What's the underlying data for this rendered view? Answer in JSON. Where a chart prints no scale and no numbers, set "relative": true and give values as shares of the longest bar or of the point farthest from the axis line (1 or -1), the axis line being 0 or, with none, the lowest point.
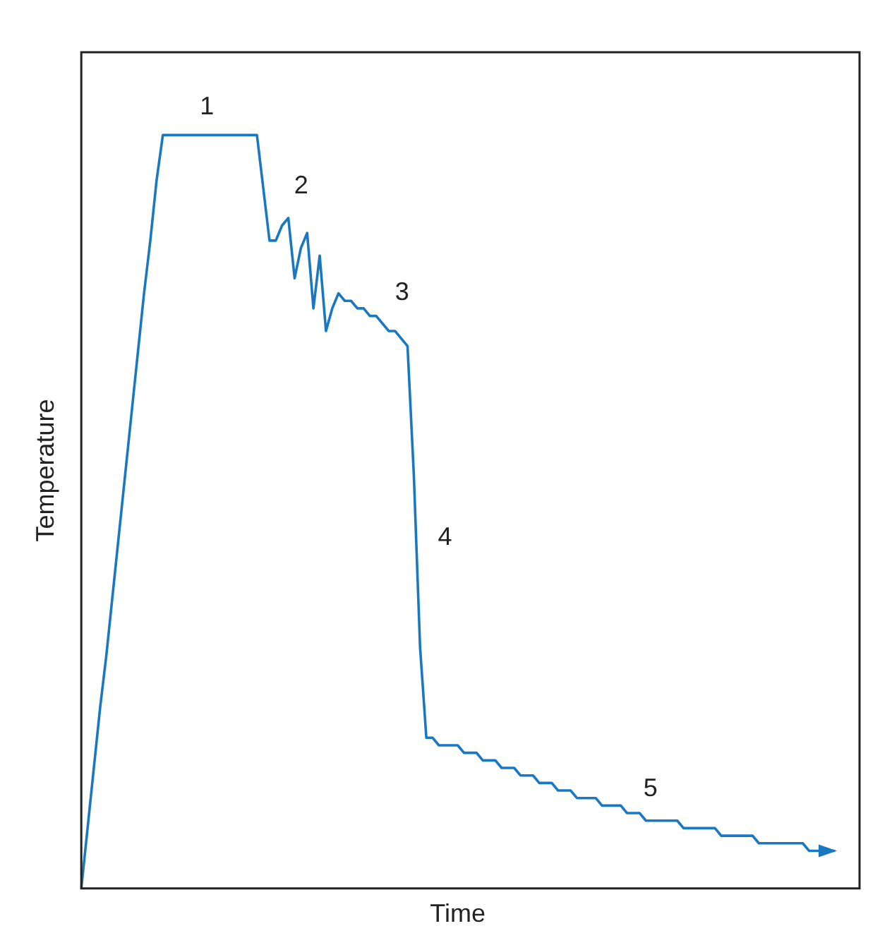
{
  "chart_data": {
    "type": "line",
    "xlabel": "Time",
    "ylabel": "Temperature",
    "relative": true,
    "tick_labels": false,
    "legend": false,
    "marker": "none",
    "line_style": "solid",
    "categories": [
      null,
      null,
      null,
      null,
      null,
      null,
      null,
      null,
      null,
      null,
      null,
      null,
      null,
      null,
      null,
      null,
      null,
      null,
      null,
      null,
      null,
      null,
      null,
      null,
      null,
      null,
      null,
      null,
      null,
      null,
      null,
      null,
      null,
      null,
      null,
      null,
      null,
      null,
      null,
      null,
      null,
      null,
      null,
      null,
      null,
      null,
      null,
      null,
      null,
      null,
      null,
      null,
      null,
      null,
      null,
      null,
      null,
      null,
      null,
      null,
      null,
      null,
      null,
      null,
      null,
      null,
      null,
      null,
      null,
      null,
      null,
      null,
      null,
      null,
      null,
      null,
      null,
      null,
      null,
      null,
      null,
      null,
      null,
      null,
      null,
      null,
      null,
      null,
      null,
      null,
      null,
      null,
      null,
      null,
      null,
      null,
      null,
      null,
      null,
      null,
      null,
      null,
      null,
      null,
      null,
      null,
      null,
      null,
      null,
      null,
      null,
      null,
      null,
      null,
      null,
      null,
      null,
      null,
      null,
      null,
      null
    ],
    "series": [
      {
        "color": "#1a78c2",
        "values": [
          0,
          0.08,
          0.16,
          0.24,
          0.31,
          0.39,
          0.47,
          0.55,
          0.63,
          0.71,
          0.79,
          0.86,
          0.94,
          1,
          1,
          1,
          1,
          1,
          1,
          1,
          1,
          1,
          1,
          1,
          1,
          1,
          1,
          1,
          1,
          0.93,
          0.86,
          0.86,
          0.88,
          0.89,
          0.81,
          0.85,
          0.87,
          0.77,
          0.84,
          0.74,
          0.77,
          0.79,
          0.78,
          0.78,
          0.77,
          0.77,
          0.76,
          0.76,
          0.75,
          0.74,
          0.74,
          0.73,
          0.72,
          0.55,
          0.32,
          0.2,
          0.2,
          0.19,
          0.19,
          0.19,
          0.19,
          0.18,
          0.18,
          0.18,
          0.17,
          0.17,
          0.17,
          0.16,
          0.16,
          0.16,
          0.15,
          0.15,
          0.15,
          0.14,
          0.14,
          0.14,
          0.13,
          0.13,
          0.13,
          0.12,
          0.12,
          0.12,
          0.12,
          0.11,
          0.11,
          0.11,
          0.11,
          0.1,
          0.1,
          0.1,
          0.09,
          0.09,
          0.09,
          0.09,
          0.09,
          0.09,
          0.08,
          0.08,
          0.08,
          0.08,
          0.08,
          0.08,
          0.07,
          0.07,
          0.07,
          0.07,
          0.07,
          0.07,
          0.06,
          0.06,
          0.06,
          0.06,
          0.06,
          0.06,
          0.06,
          0.06,
          0.05,
          0.05,
          0.05,
          0.05,
          0.05
        ]
      }
    ],
    "annotations": [
      "1",
      "2",
      "3",
      "4",
      "5"
    ]
  }
}
